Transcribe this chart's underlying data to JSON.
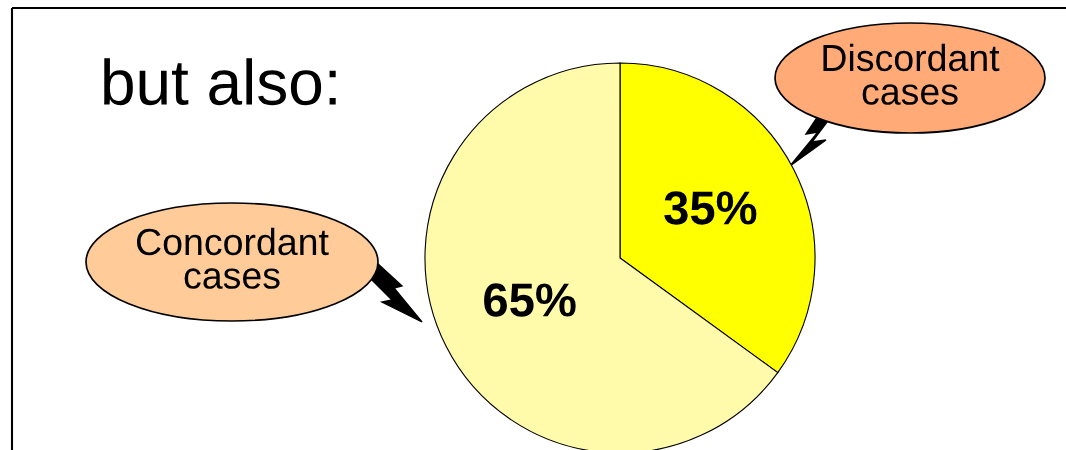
{
  "chart_data": {
    "type": "pie",
    "title": "but also:",
    "categories": [
      "Discordant\ncases",
      "Concordant\ncases"
    ],
    "values": [
      35,
      65
    ],
    "colors": [
      "#ffff00",
      "#fffbaa"
    ],
    "value_labels": [
      "35%",
      "65%"
    ]
  }
}
